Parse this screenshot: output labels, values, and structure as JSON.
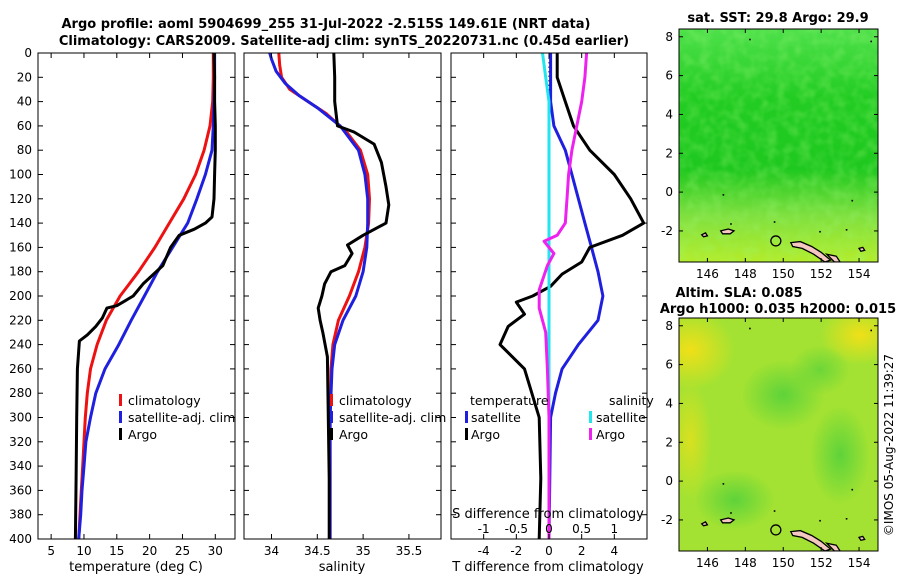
{
  "title_line1": "Argo profile: aoml 5904699_255 31-Jul-2022 -2.515S 149.61E (NRT data)",
  "title_line2": "Climatology: CARS2009. Satellite-adj clim: synTS_20220731.nc (0.45d earlier)",
  "credit": "©IMOS 05-Aug-2022 11:39:27",
  "colors": {
    "climatology": "#ee1111",
    "satellite": "#1f1fe0",
    "argo": "#000000",
    "salinity_sat": "#22e5ee",
    "salinity_argo": "#ee22ee",
    "sst_map": "#22cc22",
    "sla_map": "#99e033"
  },
  "chart_data": [
    {
      "type": "line",
      "id": "temperature",
      "xlabel": "temperature (deg C)",
      "xlim": [
        3,
        33
      ],
      "ylim": [
        400,
        0
      ],
      "xticks": [
        5,
        10,
        15,
        20,
        25,
        30
      ],
      "yticks": [
        0,
        20,
        40,
        60,
        80,
        100,
        120,
        140,
        160,
        180,
        200,
        220,
        240,
        260,
        280,
        300,
        320,
        340,
        360,
        380,
        400
      ],
      "legend": [
        "climatology",
        "satellite-adj. clim",
        "Argo"
      ],
      "series": [
        {
          "name": "climatology",
          "points": [
            [
              29.7,
              0
            ],
            [
              29.7,
              20
            ],
            [
              29.6,
              40
            ],
            [
              29.2,
              60
            ],
            [
              28.3,
              80
            ],
            [
              27.0,
              100
            ],
            [
              25.2,
              120
            ],
            [
              23.0,
              140
            ],
            [
              20.8,
              160
            ],
            [
              18.3,
              180
            ],
            [
              15.5,
              200
            ],
            [
              13.4,
              220
            ],
            [
              12.0,
              240
            ],
            [
              11.0,
              260
            ],
            [
              10.5,
              280
            ],
            [
              10.2,
              300
            ],
            [
              10.0,
              320
            ],
            [
              9.8,
              340
            ],
            [
              9.6,
              360
            ],
            [
              9.4,
              380
            ],
            [
              9.2,
              400
            ]
          ]
        },
        {
          "name": "satellite-adj. clim",
          "points": [
            [
              29.9,
              0
            ],
            [
              29.9,
              20
            ],
            [
              29.8,
              40
            ],
            [
              29.7,
              60
            ],
            [
              29.5,
              80
            ],
            [
              28.5,
              100
            ],
            [
              27.2,
              120
            ],
            [
              25.8,
              140
            ],
            [
              23.5,
              160
            ],
            [
              21.2,
              180
            ],
            [
              19.2,
              200
            ],
            [
              17.2,
              220
            ],
            [
              15.3,
              240
            ],
            [
              13.2,
              260
            ],
            [
              11.8,
              280
            ],
            [
              11.0,
              300
            ],
            [
              10.3,
              320
            ],
            [
              10.0,
              340
            ],
            [
              9.7,
              360
            ],
            [
              9.5,
              380
            ],
            [
              9.2,
              400
            ]
          ]
        },
        {
          "name": "Argo",
          "points": [
            [
              29.8,
              0
            ],
            [
              29.9,
              20
            ],
            [
              29.9,
              40
            ],
            [
              30.0,
              60
            ],
            [
              30.0,
              80
            ],
            [
              29.9,
              100
            ],
            [
              29.8,
              120
            ],
            [
              29.5,
              135
            ],
            [
              28.5,
              140
            ],
            [
              26.8,
              145
            ],
            [
              24.5,
              150
            ],
            [
              23.2,
              160
            ],
            [
              22.0,
              175
            ],
            [
              19.0,
              190
            ],
            [
              17.5,
              200
            ],
            [
              15.0,
              208
            ],
            [
              13.5,
              210
            ],
            [
              12.8,
              218
            ],
            [
              11.8,
              225
            ],
            [
              10.5,
              232
            ],
            [
              9.3,
              237
            ],
            [
              9.0,
              260
            ],
            [
              8.9,
              300
            ],
            [
              8.8,
              350
            ],
            [
              8.7,
              400
            ]
          ]
        }
      ]
    },
    {
      "type": "line",
      "id": "salinity",
      "xlabel": "salinity",
      "xlim": [
        33.7,
        35.85
      ],
      "ylim": [
        400,
        0
      ],
      "xticks": [
        34,
        34.5,
        35,
        35.5
      ],
      "legend": [
        "climatology",
        "satellite-adj. clim",
        "Argo"
      ],
      "series": [
        {
          "name": "climatology",
          "points": [
            [
              34.08,
              0
            ],
            [
              34.09,
              10
            ],
            [
              34.11,
              20
            ],
            [
              34.2,
              30
            ],
            [
              34.4,
              40
            ],
            [
              34.6,
              50
            ],
            [
              34.82,
              65
            ],
            [
              34.97,
              80
            ],
            [
              35.05,
              100
            ],
            [
              35.07,
              120
            ],
            [
              35.06,
              140
            ],
            [
              35.02,
              160
            ],
            [
              34.95,
              180
            ],
            [
              34.85,
              200
            ],
            [
              34.73,
              220
            ],
            [
              34.67,
              240
            ],
            [
              34.65,
              260
            ],
            [
              34.64,
              300
            ],
            [
              34.64,
              350
            ],
            [
              34.64,
              400
            ]
          ]
        },
        {
          "name": "satellite-adj. clim",
          "points": [
            [
              33.98,
              0
            ],
            [
              34.0,
              5
            ],
            [
              34.05,
              15
            ],
            [
              34.15,
              25
            ],
            [
              34.3,
              35
            ],
            [
              34.5,
              45
            ],
            [
              34.75,
              60
            ],
            [
              34.95,
              80
            ],
            [
              35.02,
              100
            ],
            [
              35.05,
              120
            ],
            [
              35.05,
              140
            ],
            [
              35.04,
              160
            ],
            [
              35.0,
              180
            ],
            [
              34.92,
              200
            ],
            [
              34.78,
              220
            ],
            [
              34.69,
              240
            ],
            [
              34.66,
              260
            ],
            [
              34.64,
              300
            ],
            [
              34.64,
              350
            ],
            [
              34.64,
              400
            ]
          ]
        },
        {
          "name": "Argo",
          "points": [
            [
              34.68,
              0
            ],
            [
              34.69,
              20
            ],
            [
              34.69,
              40
            ],
            [
              34.72,
              60
            ],
            [
              34.9,
              65
            ],
            [
              35.12,
              75
            ],
            [
              35.2,
              90
            ],
            [
              35.25,
              110
            ],
            [
              35.28,
              125
            ],
            [
              35.25,
              140
            ],
            [
              35.0,
              150
            ],
            [
              34.83,
              158
            ],
            [
              34.88,
              165
            ],
            [
              34.8,
              175
            ],
            [
              34.65,
              180
            ],
            [
              34.58,
              190
            ],
            [
              34.55,
              200
            ],
            [
              34.51,
              210
            ],
            [
              34.53,
              220
            ],
            [
              34.56,
              230
            ],
            [
              34.61,
              250
            ],
            [
              34.62,
              300
            ],
            [
              34.63,
              350
            ],
            [
              34.63,
              400
            ]
          ]
        }
      ]
    },
    {
      "type": "line",
      "id": "difference",
      "xlabel": "T difference from climatology",
      "xlabel_top": "S difference from climatology",
      "xlim": [
        -6,
        6
      ],
      "ylim": [
        400,
        0
      ],
      "xticks": [
        -4,
        -2,
        0,
        2,
        4
      ],
      "top_ticks": [
        {
          "label": "-1",
          "at": -4
        },
        {
          "label": "-0.5",
          "at": -2
        },
        {
          "label": "0",
          "at": 0
        },
        {
          "label": "0.5",
          "at": 2
        },
        {
          "label": "1",
          "at": 4
        }
      ],
      "legend_left_title": "temperature",
      "legend_right_title": "salinity",
      "legend": [
        "satellite",
        "Argo",
        "satellite",
        "Argo"
      ],
      "series": [
        {
          "name": "temperature satellite",
          "points": [
            [
              0.1,
              0
            ],
            [
              0.1,
              40
            ],
            [
              0.3,
              60
            ],
            [
              1.0,
              80
            ],
            [
              1.4,
              100
            ],
            [
              2.2,
              140
            ],
            [
              2.6,
              160
            ],
            [
              3.0,
              180
            ],
            [
              3.3,
              200
            ],
            [
              3.0,
              220
            ],
            [
              1.8,
              240
            ],
            [
              0.8,
              260
            ],
            [
              0.4,
              280
            ],
            [
              0.1,
              300
            ],
            [
              0.05,
              350
            ],
            [
              0.0,
              400
            ]
          ]
        },
        {
          "name": "temperature Argo",
          "points": [
            [
              0.5,
              0
            ],
            [
              0.5,
              20
            ],
            [
              1.0,
              40
            ],
            [
              1.5,
              60
            ],
            [
              2.5,
              80
            ],
            [
              4.0,
              100
            ],
            [
              5.0,
              120
            ],
            [
              5.8,
              140
            ],
            [
              4.5,
              150
            ],
            [
              2.5,
              160
            ],
            [
              2.0,
              172
            ],
            [
              0.8,
              182
            ],
            [
              0.1,
              192
            ],
            [
              -1.0,
              200
            ],
            [
              -2.0,
              205
            ],
            [
              -1.5,
              215
            ],
            [
              -2.5,
              225
            ],
            [
              -3.0,
              240
            ],
            [
              -1.5,
              260
            ],
            [
              -0.6,
              300
            ],
            [
              -0.5,
              350
            ],
            [
              -0.6,
              400
            ]
          ]
        },
        {
          "name": "salinity satellite",
          "points": [
            [
              -0.4,
              0
            ],
            [
              -0.2,
              20
            ],
            [
              0.0,
              40
            ],
            [
              0.0,
              80
            ],
            [
              0.0,
              120
            ],
            [
              0.0,
              160
            ],
            [
              0.0,
              200
            ],
            [
              0.0,
              240
            ],
            [
              0.0,
              280
            ],
            [
              0.0,
              320
            ],
            [
              0.0,
              360
            ],
            [
              0.0,
              400
            ]
          ]
        },
        {
          "name": "salinity Argo",
          "points": [
            [
              2.3,
              0
            ],
            [
              2.2,
              20
            ],
            [
              2.0,
              40
            ],
            [
              1.7,
              60
            ],
            [
              1.4,
              80
            ],
            [
              1.2,
              100
            ],
            [
              1.1,
              120
            ],
            [
              1.0,
              140
            ],
            [
              0.5,
              150
            ],
            [
              -0.3,
              155
            ],
            [
              0.3,
              165
            ],
            [
              -0.1,
              175
            ],
            [
              -0.6,
              195
            ],
            [
              -0.6,
              210
            ],
            [
              -0.2,
              230
            ],
            [
              -0.1,
              260
            ],
            [
              0.0,
              300
            ],
            [
              0.0,
              400
            ]
          ]
        }
      ]
    },
    {
      "type": "heatmap",
      "id": "sst_map",
      "title": "sat. SST: 29.8 Argo: 29.9",
      "xlim": [
        144.5,
        155.0
      ],
      "ylim": [
        -3.6,
        8.4
      ],
      "xticks": [
        146,
        148,
        150,
        152,
        154
      ],
      "yticks": [
        -2,
        0,
        2,
        4,
        6,
        8
      ],
      "profile_lon": 149.61,
      "profile_lat": -2.515
    },
    {
      "type": "heatmap",
      "id": "sla_map",
      "title_line1": "Altim. SLA: 0.085",
      "title_line2": "Argo h1000: 0.035 h2000: 0.015",
      "xlim": [
        144.5,
        155.0
      ],
      "ylim": [
        -3.6,
        8.4
      ],
      "xticks": [
        146,
        148,
        150,
        152,
        154
      ],
      "yticks": [
        -2,
        0,
        2,
        4,
        6,
        8
      ],
      "profile_lon": 149.61,
      "profile_lat": -2.515
    }
  ]
}
